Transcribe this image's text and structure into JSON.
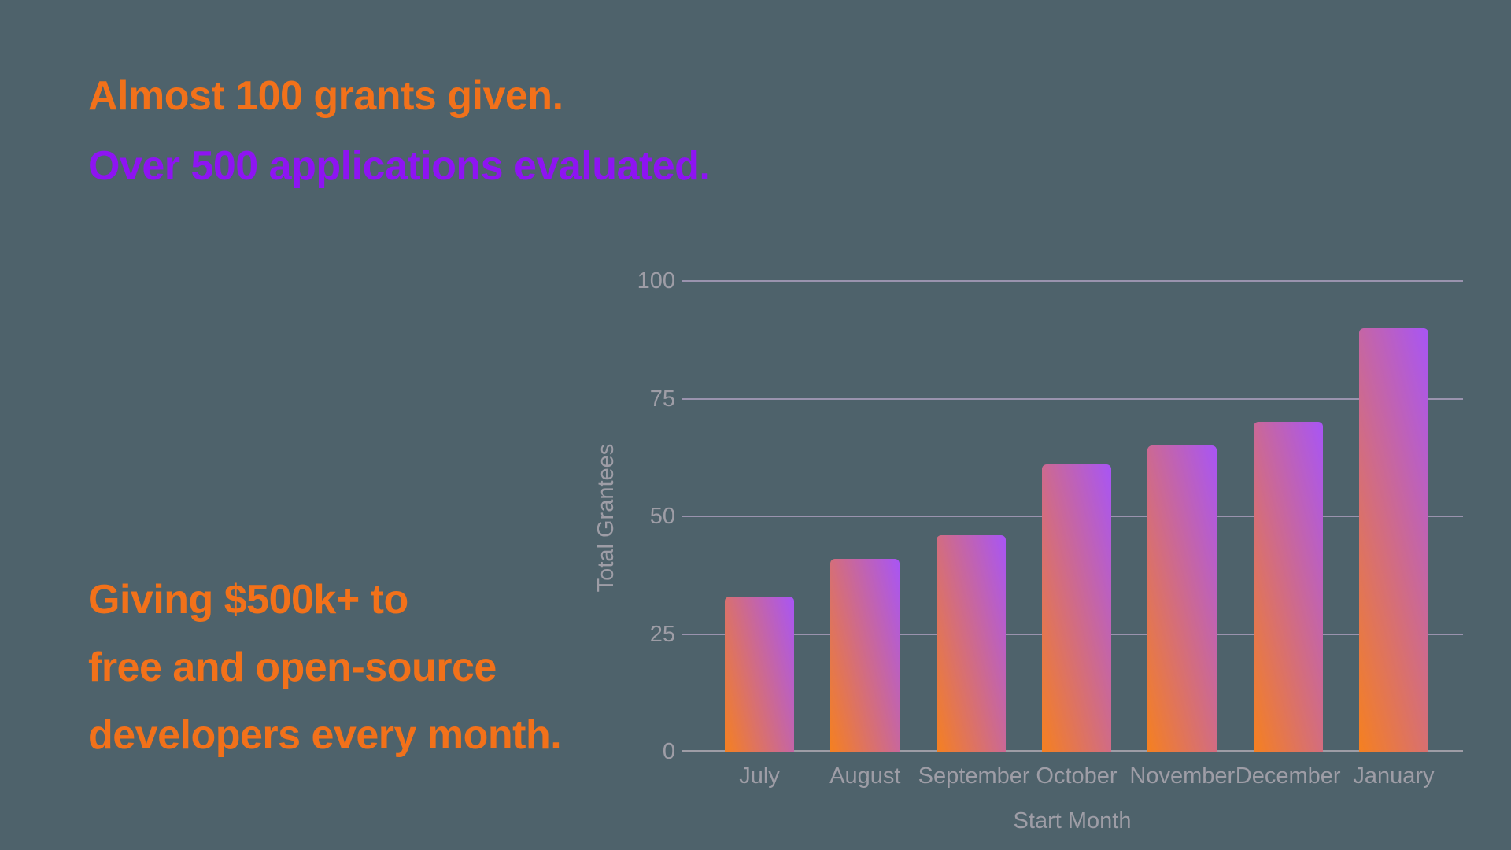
{
  "background_color": "#4E626B",
  "headline": {
    "line1": "Almost 100 grants given.",
    "line1_color": "#F2711A",
    "line2": "Over 500 applications evaluated.",
    "line2_color": "#8E14F2"
  },
  "subheadline": {
    "color": "#F2711A",
    "lines": [
      "Giving $500k+ to",
      "free and open-source",
      "developers every month."
    ]
  },
  "chart_data": {
    "type": "bar",
    "title": "",
    "categories": [
      "July",
      "August",
      "September",
      "October",
      "November",
      "December",
      "January"
    ],
    "values": [
      33,
      41,
      46,
      61,
      65,
      70,
      90
    ],
    "xlabel": "Start Month",
    "ylabel": "Total Grantees",
    "ylim": [
      0,
      100
    ],
    "yticks": [
      0,
      25,
      50,
      75,
      100
    ],
    "grid": "horizontal",
    "legend": "none",
    "bar_gradient_start": "#F58020",
    "bar_gradient_end": "#A855F5",
    "gridline_color": "#9A93AE",
    "axis_line_color": "#9E9DA6",
    "axis_text_color": "#9E9DA6"
  }
}
